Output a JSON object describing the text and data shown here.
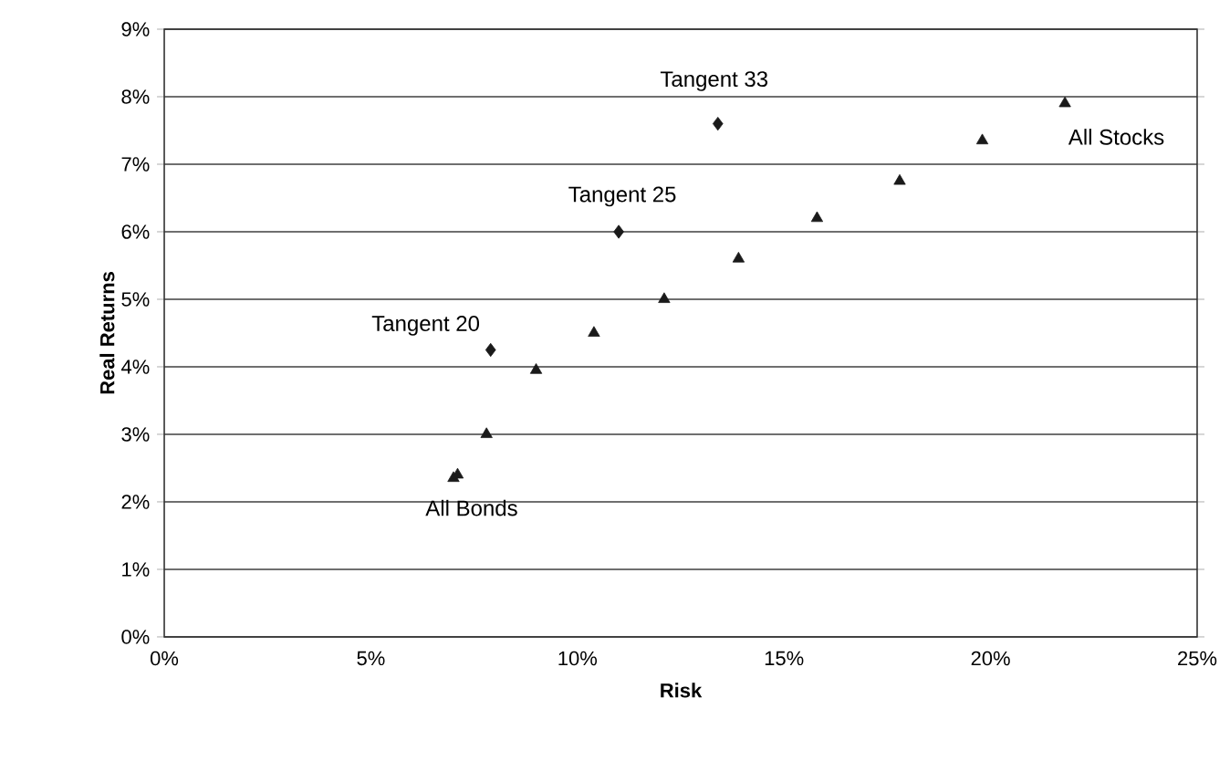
{
  "chart_data": {
    "type": "scatter",
    "xlabel": "Risk",
    "ylabel": "Real Returns",
    "xlim": [
      0,
      25
    ],
    "xticks": [
      {
        "value": 0,
        "label": "0%"
      },
      {
        "value": 5,
        "label": "5%"
      },
      {
        "value": 10,
        "label": "10%"
      },
      {
        "value": 15,
        "label": "15%"
      },
      {
        "value": 20,
        "label": "20%"
      },
      {
        "value": 25,
        "label": "25%"
      }
    ],
    "ylim": [
      0,
      9
    ],
    "yticks": [
      {
        "value": 0,
        "label": "0%"
      },
      {
        "value": 1,
        "label": "1%"
      },
      {
        "value": 2,
        "label": "2%"
      },
      {
        "value": 3,
        "label": "3%"
      },
      {
        "value": 4,
        "label": "4%"
      },
      {
        "value": 5,
        "label": "5%"
      },
      {
        "value": 6,
        "label": "6%"
      },
      {
        "value": 7,
        "label": "7%"
      },
      {
        "value": 8,
        "label": "8%"
      },
      {
        "value": 9,
        "label": "9%"
      }
    ],
    "grid": "y",
    "series": [
      {
        "color": "#1a1a1a",
        "marker": "triangle",
        "x": [
          7.0,
          7.1,
          7.8,
          9.0,
          10.4,
          12.1,
          13.9,
          15.8,
          17.8,
          19.8,
          21.8
        ],
        "values": [
          2.35,
          2.4,
          3.0,
          3.95,
          4.5,
          5.0,
          5.6,
          6.2,
          6.75,
          7.35,
          7.9
        ]
      },
      {
        "color": "#1a1a1a",
        "marker": "diamond",
        "x": [
          7.9,
          11.0,
          13.4
        ],
        "values": [
          4.25,
          6.0,
          7.6
        ]
      }
    ],
    "annotations": [
      {
        "text": "Tangent 20",
        "x": 7.9,
        "y": 4.25
      },
      {
        "text": "Tangent 25",
        "x": 11.0,
        "y": 6.0
      },
      {
        "text": "Tangent 33",
        "x": 13.4,
        "y": 7.6
      },
      {
        "text": "All Bonds",
        "x": 7.0,
        "y": 2.35
      },
      {
        "text": "All Stocks",
        "x": 21.8,
        "y": 7.9
      }
    ]
  }
}
